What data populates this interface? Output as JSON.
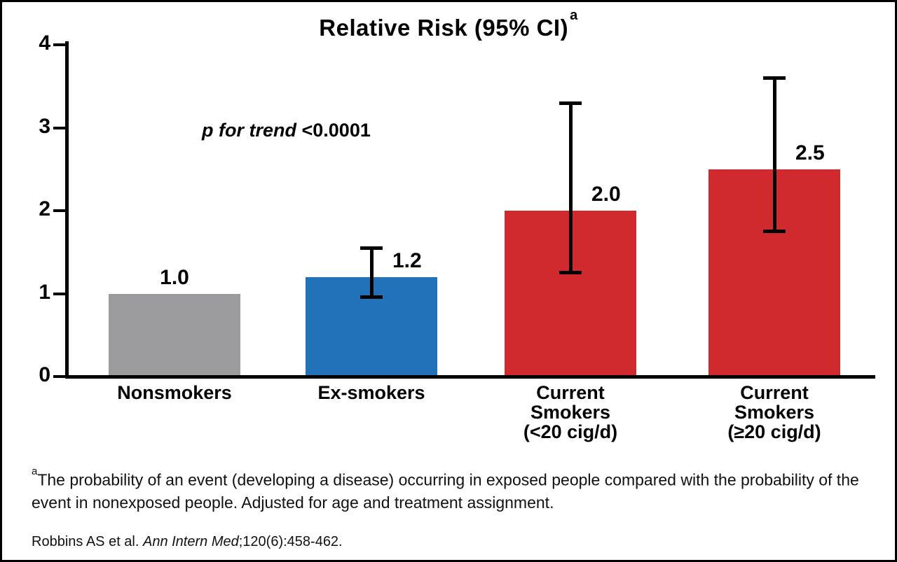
{
  "figure": {
    "background": "#ffffff",
    "border_color": "#000000"
  },
  "chart_data": {
    "type": "bar",
    "title": "Relative Risk (95% CI)",
    "title_superscript": "a",
    "annotation": {
      "italic_text": "p for trend",
      "value_text": " <0.0001"
    },
    "xlabel": "",
    "ylabel": "",
    "ylim": [
      0,
      4
    ],
    "yticks": [
      "0",
      "1",
      "2",
      "3",
      "4"
    ],
    "grid": false,
    "legend": "none",
    "axis_color": "#000000",
    "error_bar_color": "#000000",
    "categories": [
      {
        "label_lines": [
          "Nonsmokers"
        ]
      },
      {
        "label_lines": [
          "Ex-smokers"
        ]
      },
      {
        "label_lines": [
          "Current",
          "Smokers",
          "(<20 cig/d)"
        ]
      },
      {
        "label_lines": [
          "Current",
          "Smokers",
          "(≥20 cig/d)"
        ]
      }
    ],
    "series": [
      {
        "name": "Relative Risk (95% CI)",
        "points": [
          {
            "category": "Nonsmokers",
            "value": 1.0,
            "label": "1.0",
            "color": "#9b9b9d",
            "ci_low": null,
            "ci_high": null
          },
          {
            "category": "Ex-smokers",
            "value": 1.2,
            "label": "1.2",
            "color": "#2172b8",
            "ci_low": 0.95,
            "ci_high": 1.55
          },
          {
            "category": "Current Smokers (<20 cig/d)",
            "value": 2.0,
            "label": "2.0",
            "color": "#d02a2e",
            "ci_low": 1.25,
            "ci_high": 3.3
          },
          {
            "category": "Current Smokers (≥20 cig/d)",
            "value": 2.5,
            "label": "2.5",
            "color": "#d02a2e",
            "ci_low": 1.75,
            "ci_high": 3.6
          }
        ]
      }
    ]
  },
  "footnote": {
    "marker": "a",
    "text": "The probability of an event (developing a disease) occurring in exposed people compared with the probability of the event in nonexposed people. Adjusted for age and treatment assignment."
  },
  "citation": {
    "prefix": "Robbins AS et al. ",
    "journal": "Ann Intern Med",
    "suffix": ";120(6):458-462."
  }
}
